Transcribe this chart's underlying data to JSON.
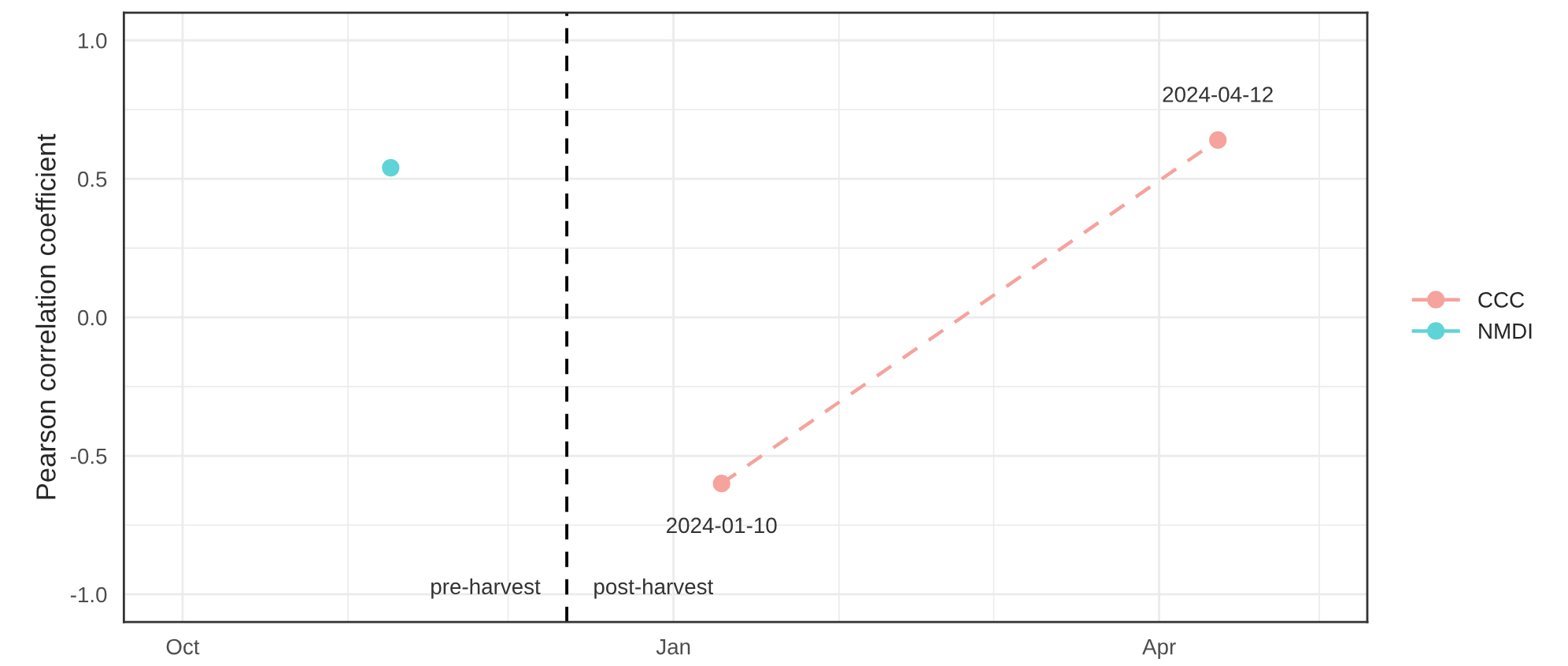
{
  "chart_data": {
    "type": "line",
    "ylabel": "Pearson correlation coefficient",
    "series": [
      {
        "name": "CCC",
        "color": "#f5a39c",
        "x": [
          "2024-01-10",
          "2024-04-12"
        ],
        "values": [
          -0.6,
          0.64
        ]
      },
      {
        "name": "NMDI",
        "color": "#5fd4d6",
        "x": [
          "2023-11-09"
        ],
        "values": [
          0.54
        ]
      }
    ],
    "xlim": [
      "2023-09-20",
      "2024-05-10"
    ],
    "xticks": [
      {
        "value": "2023-10-01",
        "label": "Oct"
      },
      {
        "value": "2024-01-01",
        "label": "Jan"
      },
      {
        "value": "2024-04-01",
        "label": "Apr"
      }
    ],
    "ylim": [
      -1.1,
      1.1
    ],
    "yticks": [
      {
        "value": -1,
        "label": "-1.0"
      },
      -0.5,
      {
        "value": 0,
        "label": "0.0"
      },
      0.5,
      {
        "value": 1,
        "label": "1.0"
      }
    ],
    "ref_lines": [
      {
        "axis": "x",
        "value": "2023-12-12",
        "color": "#000000",
        "line_style": "dashed"
      }
    ],
    "annotations": [
      "pre-harvest",
      "post-harvest",
      {
        "text": "2024-01-10",
        "x": "2024-01-10",
        "y": -0.6
      },
      {
        "text": "2024-04-12",
        "x": "2024-04-12",
        "y": 0.64
      }
    ],
    "grid": true,
    "legend": "right",
    "marker": "circle",
    "line_style": "dashed"
  }
}
